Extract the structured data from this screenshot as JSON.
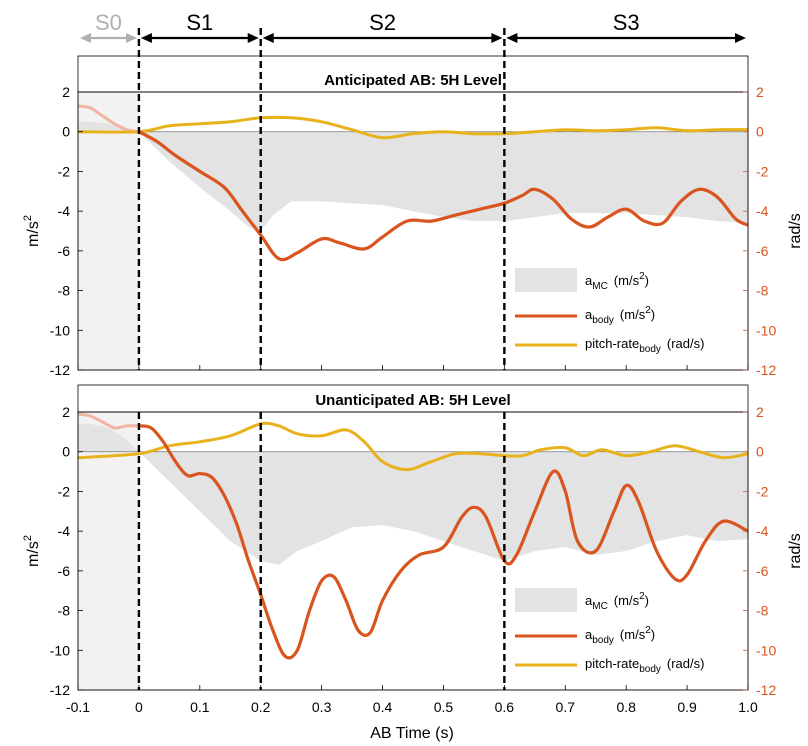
{
  "colors": {
    "a_mc": "#e3e3e3",
    "a_body": "#d9541e",
    "pitch": "#e8b21c",
    "right_axis": "#d9541e",
    "s0": "#b0b0b0",
    "pre_fade": "#f0b4a2"
  },
  "segments": [
    {
      "label": "S0",
      "from": -0.1,
      "to": 0.0,
      "muted": true
    },
    {
      "label": "S1",
      "from": 0.0,
      "to": 0.2,
      "muted": false
    },
    {
      "label": "S2",
      "from": 0.2,
      "to": 0.6,
      "muted": false
    },
    {
      "label": "S3",
      "from": 0.6,
      "to": 1.0,
      "muted": false
    }
  ],
  "xlabel": "AB Time (s)",
  "x_ticks": [
    "-0.1",
    "0",
    "0.1",
    "0.2",
    "0.3",
    "0.4",
    "0.5",
    "0.6",
    "0.7",
    "0.8",
    "0.9",
    "1.0"
  ],
  "y_ticks": [
    "2",
    "0",
    "-2",
    "-4",
    "-6",
    "-8",
    "-10",
    "-12"
  ],
  "legend": {
    "mc_main": "a",
    "mc_sub": "MC",
    "mc_unit": "(m/s",
    "body_main": "a",
    "body_sub": "body",
    "body_unit": "(m/s",
    "pitch_main": "pitch-rate",
    "pitch_sub": "body",
    "pitch_unit": "(rad/s)",
    "sup": "2",
    "close": ")"
  },
  "ylabel_left": "m/s",
  "ylabel_left_sup": "2",
  "ylabel_right": "rad/s",
  "chart_data": [
    {
      "type": "line",
      "title": "Anticipated AB: 5H Level",
      "xlim": [
        -0.1,
        1.0
      ],
      "ylim": [
        -12,
        2
      ],
      "y2lim": [
        -12,
        2
      ],
      "xlabel": "AB Time (s)",
      "ylabel": "m/s2",
      "y2label": "rad/s",
      "vlines": [
        0.0,
        0.2,
        0.6
      ],
      "series": [
        {
          "name": "aMC (m/s2)",
          "kind": "area",
          "x": [
            -0.1,
            -0.08,
            -0.05,
            -0.02,
            0.0,
            0.05,
            0.1,
            0.15,
            0.18,
            0.2,
            0.22,
            0.25,
            0.3,
            0.35,
            0.4,
            0.45,
            0.5,
            0.55,
            0.6,
            0.65,
            0.7,
            0.75,
            0.8,
            0.85,
            0.9,
            0.95,
            1.0
          ],
          "y": [
            0.5,
            0.5,
            0.4,
            0.1,
            0,
            -1.5,
            -2.8,
            -4.0,
            -4.8,
            -5.0,
            -4.2,
            -3.5,
            -3.5,
            -3.6,
            -3.7,
            -4.0,
            -4.3,
            -4.5,
            -4.5,
            -4.3,
            -4.1,
            -4.1,
            -4.1,
            -4.2,
            -4.3,
            -4.5,
            -4.6
          ]
        },
        {
          "name": "abody (m/s2)",
          "kind": "line",
          "x": [
            0.0,
            0.03,
            0.06,
            0.1,
            0.14,
            0.17,
            0.2,
            0.23,
            0.26,
            0.3,
            0.33,
            0.37,
            0.4,
            0.44,
            0.48,
            0.52,
            0.56,
            0.6,
            0.63,
            0.65,
            0.68,
            0.71,
            0.74,
            0.77,
            0.8,
            0.83,
            0.86,
            0.89,
            0.92,
            0.95,
            0.98,
            1.0
          ],
          "y": [
            0,
            -0.5,
            -1.2,
            -2.0,
            -2.8,
            -4.0,
            -5.2,
            -6.4,
            -6.1,
            -5.4,
            -5.6,
            -5.9,
            -5.3,
            -4.5,
            -4.5,
            -4.2,
            -3.9,
            -3.6,
            -3.2,
            -2.9,
            -3.4,
            -4.4,
            -4.8,
            -4.3,
            -3.9,
            -4.5,
            -4.6,
            -3.5,
            -2.9,
            -3.3,
            -4.4,
            -4.7
          ]
        },
        {
          "name": "pitch-ratebody (rad/s)",
          "kind": "line",
          "axis": "right",
          "x": [
            -0.1,
            0.0,
            0.05,
            0.1,
            0.15,
            0.2,
            0.25,
            0.3,
            0.35,
            0.4,
            0.45,
            0.5,
            0.55,
            0.6,
            0.65,
            0.7,
            0.75,
            0.8,
            0.85,
            0.9,
            0.95,
            1.0
          ],
          "y": [
            0,
            0,
            0.3,
            0.4,
            0.5,
            0.7,
            0.7,
            0.5,
            0.1,
            -0.3,
            -0.1,
            0,
            -0.1,
            -0.1,
            0,
            0.1,
            0.05,
            0.1,
            0.2,
            0.05,
            0.1,
            0.1
          ]
        }
      ],
      "pre_zero_trace": {
        "x": [
          -0.1,
          -0.08,
          -0.06,
          -0.04,
          -0.02,
          0.0
        ],
        "y": [
          1.3,
          1.2,
          0.8,
          0.4,
          0.1,
          0
        ]
      }
    },
    {
      "type": "line",
      "title": "Unanticipated AB: 5H Level",
      "xlim": [
        -0.1,
        1.0
      ],
      "ylim": [
        -12,
        2
      ],
      "y2lim": [
        -12,
        2
      ],
      "xlabel": "AB Time (s)",
      "ylabel": "m/s2",
      "y2label": "rad/s",
      "vlines": [
        0.0,
        0.2,
        0.6
      ],
      "series": [
        {
          "name": "aMC (m/s2)",
          "kind": "area",
          "x": [
            -0.1,
            -0.08,
            -0.05,
            -0.02,
            0.0,
            0.05,
            0.1,
            0.15,
            0.2,
            0.23,
            0.26,
            0.3,
            0.35,
            0.4,
            0.45,
            0.5,
            0.55,
            0.6,
            0.65,
            0.7,
            0.75,
            0.8,
            0.85,
            0.9,
            0.95,
            1.0
          ],
          "y": [
            1.4,
            1.4,
            1.2,
            0.6,
            0,
            -1.5,
            -3.0,
            -4.5,
            -5.5,
            -5.7,
            -5.0,
            -4.5,
            -3.8,
            -3.7,
            -4.0,
            -4.5,
            -5.0,
            -5.5,
            -5.0,
            -4.8,
            -5.2,
            -5.0,
            -4.5,
            -4.2,
            -4.5,
            -4.4
          ]
        },
        {
          "name": "abody (m/s2)",
          "kind": "line",
          "x": [
            0.0,
            0.02,
            0.04,
            0.06,
            0.08,
            0.1,
            0.12,
            0.14,
            0.16,
            0.18,
            0.2,
            0.22,
            0.24,
            0.26,
            0.28,
            0.3,
            0.32,
            0.34,
            0.36,
            0.38,
            0.4,
            0.43,
            0.46,
            0.5,
            0.53,
            0.55,
            0.57,
            0.6,
            0.62,
            0.65,
            0.68,
            0.7,
            0.72,
            0.75,
            0.78,
            0.8,
            0.82,
            0.85,
            0.88,
            0.9,
            0.93,
            0.96,
            1.0
          ],
          "y": [
            1.3,
            1.2,
            0.5,
            -0.5,
            -1.2,
            -1.1,
            -1.3,
            -2.2,
            -3.6,
            -5.5,
            -7.2,
            -9.0,
            -10.3,
            -10.0,
            -8.0,
            -6.5,
            -6.3,
            -7.5,
            -9.0,
            -9.1,
            -7.5,
            -6.0,
            -5.2,
            -4.8,
            -3.3,
            -2.8,
            -3.3,
            -5.5,
            -5.2,
            -3.0,
            -1.0,
            -2.0,
            -4.5,
            -5.0,
            -3.0,
            -1.7,
            -2.5,
            -5.0,
            -6.4,
            -6.2,
            -4.5,
            -3.5,
            -4.0
          ]
        },
        {
          "name": "pitch-ratebody (rad/s)",
          "kind": "line",
          "axis": "right",
          "x": [
            -0.1,
            0.0,
            0.05,
            0.1,
            0.15,
            0.2,
            0.23,
            0.26,
            0.3,
            0.34,
            0.37,
            0.4,
            0.44,
            0.48,
            0.52,
            0.56,
            0.6,
            0.63,
            0.66,
            0.7,
            0.73,
            0.76,
            0.8,
            0.84,
            0.88,
            0.92,
            0.96,
            1.0
          ],
          "y": [
            -0.3,
            -0.1,
            0.3,
            0.5,
            0.8,
            1.4,
            1.3,
            0.9,
            0.8,
            1.1,
            0.5,
            -0.5,
            -0.9,
            -0.5,
            -0.1,
            -0.1,
            -0.2,
            -0.2,
            0.1,
            0.2,
            -0.2,
            0.1,
            -0.2,
            0,
            0.3,
            0,
            -0.3,
            -0.1
          ]
        }
      ],
      "pre_zero_trace": {
        "x": [
          -0.1,
          -0.08,
          -0.06,
          -0.04,
          -0.02,
          0.0
        ],
        "y": [
          1.9,
          1.8,
          1.5,
          1.2,
          1.3,
          1.3
        ]
      }
    }
  ]
}
